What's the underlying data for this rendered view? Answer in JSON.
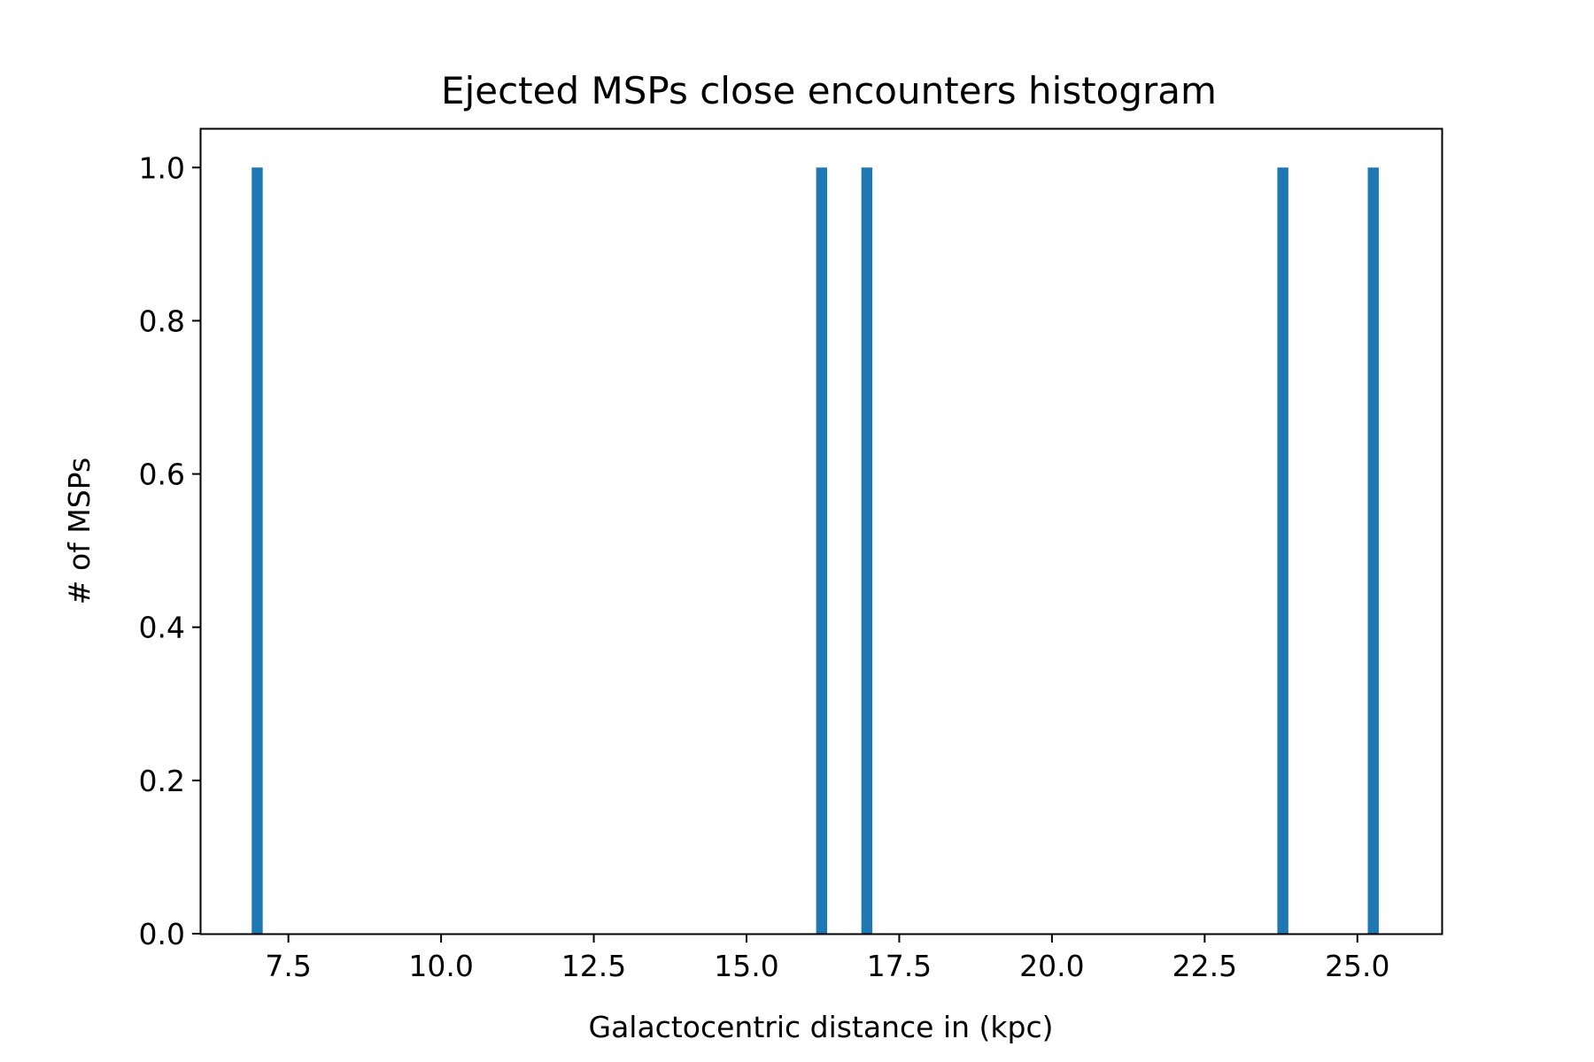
{
  "chart_data": {
    "type": "bar",
    "title": "Ejected MSPs close encounters histogram",
    "xlabel": "Galactocentric distance in (kpc)",
    "ylabel": "# of MSPs",
    "xlim": [
      6.07,
      26.38
    ],
    "ylim": [
      0.0,
      1.05
    ],
    "x_ticks": [
      7.5,
      10.0,
      12.5,
      15.0,
      17.5,
      20.0,
      22.5,
      25.0
    ],
    "x_tick_labels": [
      "7.5",
      "10.0",
      "12.5",
      "15.0",
      "17.5",
      "20.0",
      "22.5",
      "25.0"
    ],
    "y_ticks": [
      0.0,
      0.2,
      0.4,
      0.6,
      0.8,
      1.0
    ],
    "y_tick_labels": [
      "0.0",
      "0.2",
      "0.4",
      "0.6",
      "0.8",
      "1.0"
    ],
    "bin_width": 0.18,
    "bars": [
      {
        "x": 6.99,
        "value": 1.0
      },
      {
        "x": 16.23,
        "value": 1.0
      },
      {
        "x": 16.97,
        "value": 1.0
      },
      {
        "x": 23.78,
        "value": 1.0
      },
      {
        "x": 25.26,
        "value": 1.0
      }
    ],
    "bar_color": "#1f77b4",
    "grid": false,
    "legend": "none"
  }
}
